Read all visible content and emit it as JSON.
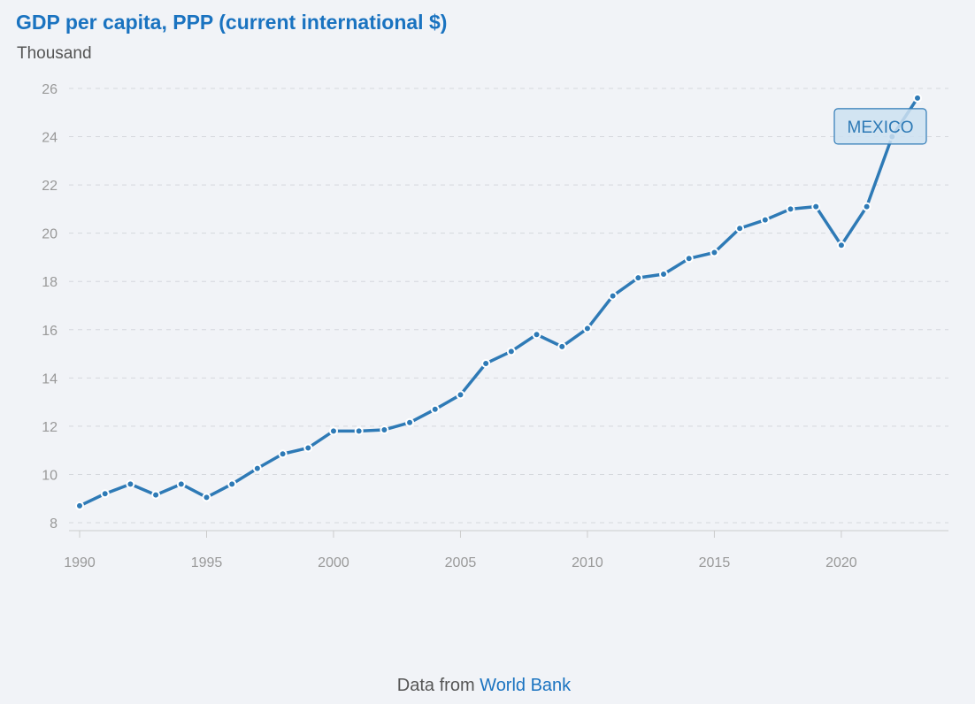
{
  "header": {
    "title": "GDP per capita, PPP (current international $)",
    "unit": "Thousand"
  },
  "footer": {
    "prefix": "Data from",
    "source": "World Bank"
  },
  "colors": {
    "line": "#2e7ab6",
    "title": "#1a73c0",
    "label_bg": "#cde0f1",
    "label_border": "#2e7ab6"
  },
  "chart_data": {
    "type": "line",
    "title": "GDP per capita, PPP (current international $)",
    "ylabel": "Thousand",
    "xlabel": "",
    "xlim": [
      1990,
      2023
    ],
    "ylim": [
      8,
      26
    ],
    "grid": true,
    "x_ticks": [
      1990,
      1995,
      2000,
      2005,
      2010,
      2015,
      2020
    ],
    "y_ticks": [
      8,
      10,
      12,
      14,
      16,
      18,
      20,
      22,
      24,
      26
    ],
    "series": [
      {
        "name": "MEXICO",
        "x": [
          1990,
          1991,
          1992,
          1993,
          1994,
          1995,
          1996,
          1997,
          1998,
          1999,
          2000,
          2001,
          2002,
          2003,
          2004,
          2005,
          2006,
          2007,
          2008,
          2009,
          2010,
          2011,
          2012,
          2013,
          2014,
          2015,
          2016,
          2017,
          2018,
          2019,
          2020,
          2021,
          2022,
          2023
        ],
        "values": [
          8.7,
          9.2,
          9.6,
          9.15,
          9.6,
          9.05,
          9.6,
          10.25,
          10.85,
          11.1,
          11.8,
          11.8,
          11.85,
          12.15,
          12.7,
          13.3,
          14.6,
          15.1,
          15.8,
          15.3,
          16.05,
          17.4,
          18.15,
          18.3,
          18.95,
          19.2,
          20.2,
          20.55,
          21.0,
          21.1,
          19.5,
          21.1,
          24.0,
          25.6
        ]
      }
    ]
  }
}
